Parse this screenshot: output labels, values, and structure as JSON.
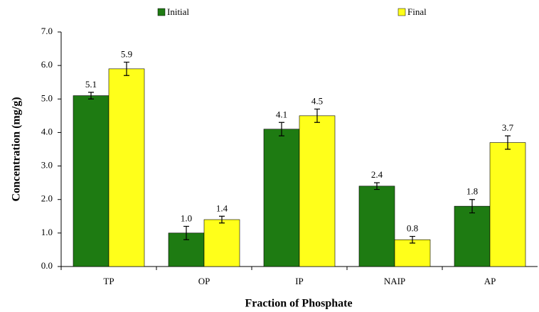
{
  "chart_data": {
    "type": "bar",
    "x_label": "Fraction of Phosphate",
    "y_label": "Concentration (mg/g)",
    "categories": [
      "TP",
      "OP",
      "IP",
      "NAIP",
      "AP"
    ],
    "series": [
      {
        "name": "Initial",
        "color": "#1e7b12",
        "values": [
          5.1,
          1.0,
          4.1,
          2.4,
          1.8
        ],
        "value_labels": [
          "5.1",
          "1.0",
          "4.1",
          "2.4",
          "1.8"
        ],
        "errors": [
          0.1,
          0.2,
          0.2,
          0.1,
          0.2
        ]
      },
      {
        "name": "Final",
        "color": "#ffff1a",
        "values": [
          5.9,
          1.4,
          4.5,
          0.8,
          3.7
        ],
        "value_labels": [
          "5.9",
          "1.4",
          "4.5",
          "0.8",
          "3.7"
        ],
        "errors": [
          0.2,
          0.1,
          0.2,
          0.1,
          0.2
        ]
      }
    ],
    "ylim": [
      0,
      7
    ],
    "yticks": [
      {
        "value": 0,
        "label": "0.0"
      },
      {
        "value": 1,
        "label": "1.0"
      },
      {
        "value": 2,
        "label": "2.0"
      },
      {
        "value": 3,
        "label": "3.0"
      },
      {
        "value": 4,
        "label": "4.0"
      },
      {
        "value": 5,
        "label": "5.0"
      },
      {
        "value": 6,
        "label": "6.0"
      },
      {
        "value": 7,
        "label": "7.0"
      }
    ],
    "legend": "top"
  }
}
